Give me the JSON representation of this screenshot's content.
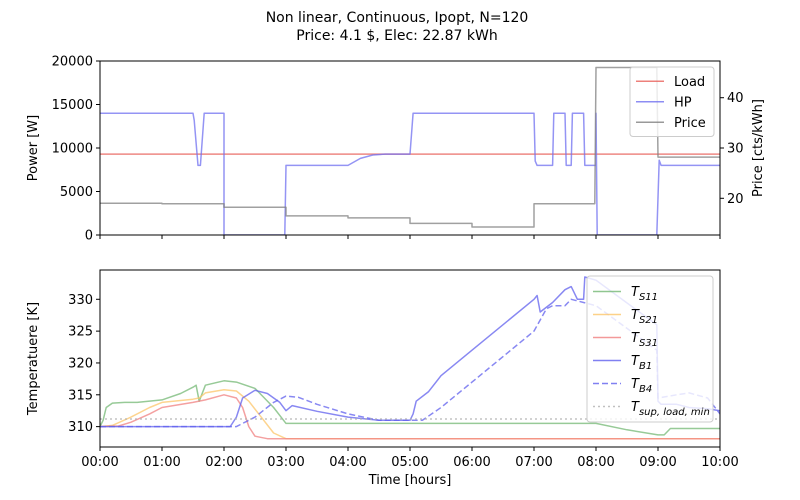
{
  "figure": {
    "title_line1": "Non linear, Continuous, Ipopt, N=120",
    "title_line2": "Price: 4.1 $, Elec: 22.87 kWh"
  },
  "chart_data": [
    {
      "type": "line",
      "panel": "top",
      "xlabel": "",
      "ylabel": "Power [W]",
      "y2label": "Price [cts/kWh]",
      "xlim": [
        0,
        10
      ],
      "ylim": [
        0,
        20000
      ],
      "y2lim": [
        12.7,
        47.3
      ],
      "x_ticks": [
        "00:00",
        "01:00",
        "02:00",
        "03:00",
        "04:00",
        "05:00",
        "06:00",
        "07:00",
        "08:00",
        "09:00",
        "10:00"
      ],
      "y_ticks": [
        0,
        5000,
        10000,
        15000,
        20000
      ],
      "y2_ticks": [
        20,
        30,
        40
      ],
      "legend": {
        "position": "top-right",
        "entries": [
          "Load",
          "HP",
          "Price"
        ]
      },
      "series": [
        {
          "name": "Load",
          "axis": "left",
          "color": "#e8605a",
          "x": [
            0,
            10
          ],
          "y": [
            9300,
            9300
          ]
        },
        {
          "name": "HP",
          "axis": "left",
          "color": "#7070f0",
          "x": [
            0,
            1.5,
            1.52,
            1.58,
            1.62,
            1.68,
            2.0,
            2.0,
            2.02,
            2.98,
            3.0,
            3.02,
            4.0,
            4.2,
            4.4,
            4.6,
            5.0,
            5.05,
            7.0,
            7.02,
            7.05,
            7.3,
            7.32,
            7.5,
            7.52,
            7.6,
            7.62,
            7.8,
            7.82,
            8.0,
            8.0,
            8.02,
            8.98,
            9.02,
            9.05,
            10
          ],
          "y": [
            14000,
            14000,
            13200,
            8000,
            8000,
            14000,
            14000,
            0,
            0,
            0,
            8000,
            8000,
            8000,
            8800,
            9200,
            9300,
            9300,
            14000,
            14000,
            8500,
            8000,
            8000,
            14000,
            14000,
            8000,
            8000,
            14000,
            14000,
            8000,
            8000,
            14000,
            0,
            0,
            8600,
            8000,
            8000
          ]
        },
        {
          "name": "Price",
          "axis": "right",
          "color": "#808080",
          "x": [
            0,
            1.0,
            1.0,
            2.0,
            2.0,
            3.0,
            3.0,
            4.0,
            4.0,
            5.0,
            5.0,
            6.0,
            6.0,
            7.0,
            7.0,
            7.98,
            8.0,
            8.98,
            9.0,
            10
          ],
          "y": [
            19.0,
            19.0,
            18.9,
            18.9,
            18.2,
            18.2,
            16.5,
            16.5,
            16.1,
            16.1,
            15.0,
            15.0,
            14.3,
            14.3,
            18.9,
            18.9,
            46.0,
            46.0,
            28.2,
            28.2
          ]
        }
      ]
    },
    {
      "type": "line",
      "panel": "bottom",
      "xlabel": "Time [hours]",
      "ylabel": "Temperatuere [K]",
      "xlim": [
        0,
        10
      ],
      "ylim": [
        306.8,
        334.6
      ],
      "x_ticks": [
        "00:00",
        "01:00",
        "02:00",
        "03:00",
        "04:00",
        "05:00",
        "06:00",
        "07:00",
        "08:00",
        "09:00",
        "10:00"
      ],
      "y_ticks": [
        310,
        315,
        320,
        325,
        330
      ],
      "legend": {
        "position": "top-right",
        "entries": [
          "T_S11",
          "T_S21",
          "T_S31",
          "T_B1",
          "T_B4",
          "T_sup,load,min"
        ]
      },
      "series": [
        {
          "name": "T_S11",
          "label_main": "T",
          "label_sub": "S11",
          "color": "#74b874",
          "dash": "solid",
          "x": [
            0,
            0.05,
            0.1,
            0.2,
            0.4,
            0.6,
            1.0,
            1.3,
            1.5,
            1.55,
            1.6,
            1.7,
            2.0,
            2.2,
            2.5,
            2.8,
            3.0,
            3.2,
            4.0,
            6.0,
            7.0,
            8.0,
            8.5,
            9.0,
            9.1,
            9.2,
            10
          ],
          "y": [
            310,
            311,
            313,
            313.7,
            313.8,
            313.8,
            314.2,
            315.2,
            316.2,
            316.5,
            314.0,
            316.5,
            317.2,
            317.0,
            316.0,
            313.0,
            310.5,
            310.5,
            310.5,
            310.5,
            310.5,
            310.5,
            309.5,
            308.7,
            308.7,
            309.7,
            309.7
          ]
        },
        {
          "name": "T_S21",
          "label_main": "T",
          "label_sub": "S21",
          "color": "#fcc56a",
          "dash": "solid",
          "x": [
            0,
            0.2,
            0.5,
            0.8,
            1.0,
            1.5,
            1.6,
            1.7,
            2.0,
            2.2,
            2.4,
            2.6,
            2.8,
            3.0,
            10
          ],
          "y": [
            310,
            310.2,
            311.5,
            313.0,
            313.8,
            314.3,
            314.5,
            315.3,
            315.8,
            315.6,
            314.0,
            311.5,
            309.0,
            308.1,
            308.1
          ]
        },
        {
          "name": "T_S31",
          "label_main": "T",
          "label_sub": "S31",
          "color": "#f08080",
          "dash": "solid",
          "x": [
            0,
            0.3,
            0.5,
            0.8,
            1.0,
            1.5,
            1.7,
            2.0,
            2.2,
            2.3,
            2.4,
            2.5,
            2.7,
            3.0,
            10
          ],
          "y": [
            310,
            310.1,
            310.7,
            312.0,
            313.0,
            313.8,
            314.2,
            315.0,
            314.5,
            313.0,
            310.0,
            308.5,
            308.1,
            308.1,
            308.1
          ]
        },
        {
          "name": "T_B1",
          "label_main": "T",
          "label_sub": "B1",
          "color": "#6060ee",
          "dash": "solid",
          "x": [
            0,
            2.0,
            2.1,
            2.2,
            2.3,
            2.5,
            2.7,
            2.9,
            3.0,
            3.1,
            3.5,
            4.0,
            4.5,
            5.0,
            5.05,
            5.1,
            5.3,
            5.5,
            6.0,
            7.0,
            7.05,
            7.1,
            7.3,
            7.5,
            7.6,
            7.7,
            7.8,
            7.82,
            8.0,
            8.98,
            9.0,
            9.05,
            9.3,
            9.5,
            9.8,
            10
          ],
          "y": [
            310,
            310,
            310,
            311.5,
            314.5,
            315.7,
            315.2,
            313.8,
            312.5,
            313.3,
            312.4,
            311.5,
            311.0,
            311.0,
            312.0,
            314.0,
            315.5,
            318.0,
            322.0,
            330.0,
            330.6,
            328.0,
            329.5,
            331.5,
            332.0,
            330.0,
            330.0,
            333.5,
            333.0,
            326.0,
            314.0,
            313.5,
            313.5,
            313.0,
            312.8,
            312.5
          ]
        },
        {
          "name": "T_B4",
          "label_main": "T",
          "label_sub": "B4",
          "color": "#6060ee",
          "dash": "dashed",
          "x": [
            0,
            2.0,
            2.2,
            2.5,
            2.8,
            3.0,
            3.2,
            3.5,
            4.0,
            4.5,
            5.0,
            5.2,
            5.5,
            6.0,
            7.0,
            7.2,
            7.3,
            7.5,
            7.6,
            7.8,
            8.0,
            8.98,
            9.0,
            9.3,
            9.5,
            9.8,
            10
          ],
          "y": [
            310,
            310,
            310,
            311.5,
            313.8,
            314.8,
            314.6,
            313.5,
            312.0,
            311.0,
            311.0,
            311.0,
            313.0,
            317.0,
            325.0,
            328.5,
            329.0,
            329.0,
            330.0,
            329.5,
            329.0,
            322.0,
            314.5,
            315.0,
            315.3,
            314.5,
            312.0
          ]
        },
        {
          "name": "T_sup,load,min",
          "label_main": "T",
          "label_sub": "sup, load, min",
          "color": "#b0b0b0",
          "dash": "dotted",
          "x": [
            0,
            10
          ],
          "y": [
            311.2,
            311.2
          ]
        }
      ]
    }
  ]
}
